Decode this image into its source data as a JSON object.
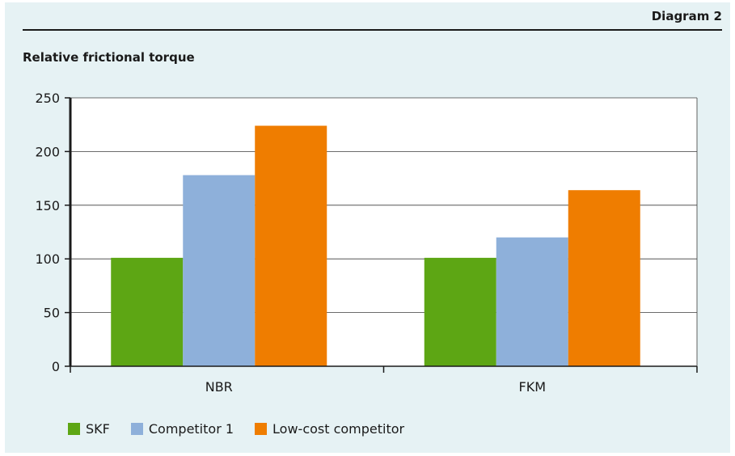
{
  "header": {
    "diagram_label": "Diagram 2",
    "chart_title": "Relative frictional torque"
  },
  "chart_data": {
    "type": "bar",
    "categories": [
      "NBR",
      "FKM"
    ],
    "series": [
      {
        "name": "SKF",
        "values": [
          101,
          101
        ],
        "color": "#5da614"
      },
      {
        "name": "Competitor 1",
        "values": [
          178,
          120
        ],
        "color": "#8eb0da"
      },
      {
        "name": "Low-cost competitor",
        "values": [
          224,
          164
        ],
        "color": "#ef7d00"
      }
    ],
    "ylim": [
      0,
      250
    ],
    "yticks": [
      0,
      50,
      100,
      150,
      200,
      250
    ],
    "grid": true,
    "legend": "bottom"
  }
}
